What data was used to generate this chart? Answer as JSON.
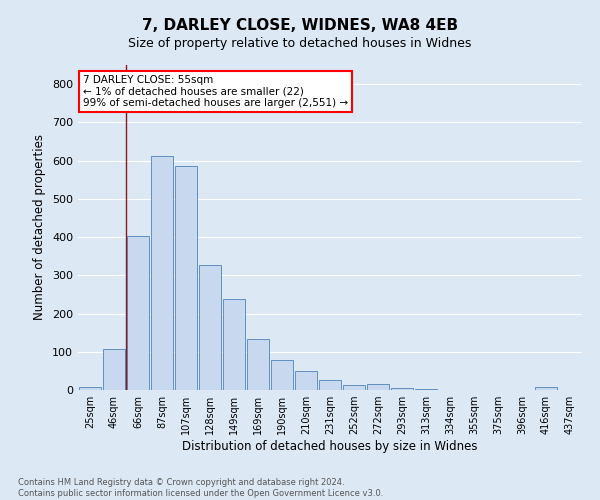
{
  "title1": "7, DARLEY CLOSE, WIDNES, WA8 4EB",
  "title2": "Size of property relative to detached houses in Widnes",
  "xlabel": "Distribution of detached houses by size in Widnes",
  "ylabel": "Number of detached properties",
  "categories": [
    "25sqm",
    "46sqm",
    "66sqm",
    "87sqm",
    "107sqm",
    "128sqm",
    "149sqm",
    "169sqm",
    "190sqm",
    "210sqm",
    "231sqm",
    "252sqm",
    "272sqm",
    "293sqm",
    "313sqm",
    "334sqm",
    "355sqm",
    "375sqm",
    "396sqm",
    "416sqm",
    "437sqm"
  ],
  "values": [
    8,
    108,
    403,
    613,
    585,
    327,
    237,
    133,
    78,
    50,
    26,
    13,
    16,
    5,
    3,
    0,
    0,
    0,
    0,
    8,
    0
  ],
  "bar_color": "#c8d8ee",
  "bar_edge_color": "#6090c0",
  "vline_x": 1.5,
  "vline_color": "#8b1a1a",
  "annotation_text": "7 DARLEY CLOSE: 55sqm\n← 1% of detached houses are smaller (22)\n99% of semi-detached houses are larger (2,551) →",
  "annotation_box_color": "white",
  "annotation_box_edge_color": "red",
  "ylim": [
    0,
    850
  ],
  "yticks": [
    0,
    100,
    200,
    300,
    400,
    500,
    600,
    700,
    800
  ],
  "footer_text": "Contains HM Land Registry data © Crown copyright and database right 2024.\nContains public sector information licensed under the Open Government Licence v3.0.",
  "background_color": "#dde8f5",
  "grid_color": "white",
  "title_fontsize": 11,
  "subtitle_fontsize": 9
}
